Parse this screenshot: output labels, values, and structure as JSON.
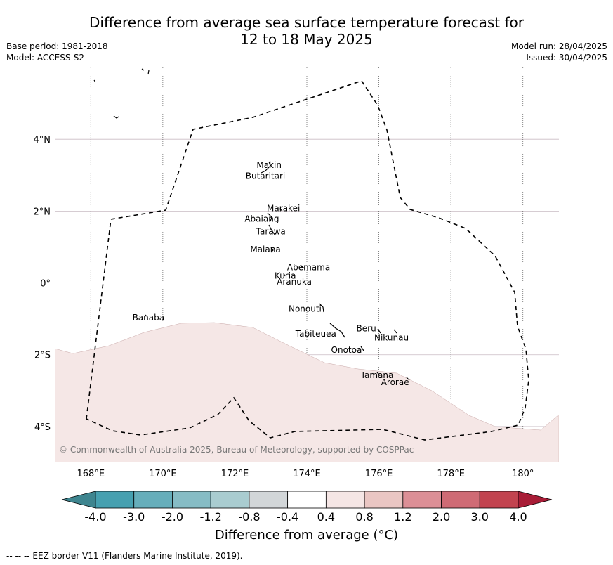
{
  "title_line1": "Difference from average sea surface temperature forecast for",
  "title_line2": "12 to 18 May 2025",
  "meta_left": [
    "Base period: 1981-2018",
    "Model: ACCESS-S2"
  ],
  "meta_right": [
    "Model run: 28/04/2025",
    "Issued: 30/04/2025"
  ],
  "copyright": "© Commonwealth of Australia 2025, Bureau of Meteorology, supported by COSPPac",
  "footer": "--  --  -- EEZ border V11 (Flanders Marine Institute, 2019).",
  "lat_ticks": [
    {
      "value": 4,
      "label": "4°N"
    },
    {
      "value": 2,
      "label": "2°N"
    },
    {
      "value": 0,
      "label": "0°"
    },
    {
      "value": -2,
      "label": "2°S"
    },
    {
      "value": -4,
      "label": "4°S"
    }
  ],
  "lon_ticks": [
    {
      "value": 168,
      "label": "168°E"
    },
    {
      "value": 170,
      "label": "170°E"
    },
    {
      "value": 172,
      "label": "172°E"
    },
    {
      "value": 174,
      "label": "174°E"
    },
    {
      "value": 176,
      "label": "176°E"
    },
    {
      "value": 178,
      "label": "178°E"
    },
    {
      "value": 180,
      "label": "180°"
    }
  ],
  "map_extent": {
    "lon_min": 167,
    "lon_max": 181,
    "lat_min": -5,
    "lat_max": 6
  },
  "places": [
    {
      "name": "Makin",
      "lon": 172.95,
      "lat": 3.2
    },
    {
      "name": "Butaritari",
      "lon": 172.85,
      "lat": 2.9
    },
    {
      "name": "Marakei",
      "lon": 173.35,
      "lat": 2.0
    },
    {
      "name": "Abaiang",
      "lon": 172.75,
      "lat": 1.7
    },
    {
      "name": "Tarawa",
      "lon": 173.0,
      "lat": 1.35
    },
    {
      "name": "Maiana",
      "lon": 172.85,
      "lat": 0.85
    },
    {
      "name": "Abemama",
      "lon": 174.05,
      "lat": 0.35
    },
    {
      "name": "Kuria",
      "lon": 173.4,
      "lat": 0.12
    },
    {
      "name": "Aranuka",
      "lon": 173.65,
      "lat": -0.05
    },
    {
      "name": "Banaba",
      "lon": 169.6,
      "lat": -1.05
    },
    {
      "name": "Nonouti",
      "lon": 173.95,
      "lat": -0.8
    },
    {
      "name": "Tabiteuea",
      "lon": 174.25,
      "lat": -1.5
    },
    {
      "name": "Beru",
      "lon": 175.65,
      "lat": -1.35
    },
    {
      "name": "Nikunau",
      "lon": 176.35,
      "lat": -1.6
    },
    {
      "name": "Onotoa",
      "lon": 175.1,
      "lat": -1.95
    },
    {
      "name": "Tamana",
      "lon": 175.95,
      "lat": -2.65
    },
    {
      "name": "Arorae",
      "lon": 176.45,
      "lat": -2.85
    }
  ],
  "colorbar": {
    "title": "Difference from average (°C)",
    "ticks": [
      "-4.0",
      "-3.0",
      "-2.0",
      "-1.2",
      "-0.8",
      "-0.4",
      "0.4",
      "0.8",
      "1.2",
      "2.0",
      "3.0",
      "4.0"
    ],
    "colors": [
      "#46a0b0",
      "#66aebb",
      "#86bcc5",
      "#a9ccd0",
      "#d2d6d8",
      "#ffffff",
      "#f5e6e5",
      "#eac6c3",
      "#dc8f96",
      "#cf6b75",
      "#c2434f"
    ],
    "extend_low": "#3e858f",
    "extend_high": "#a81d37"
  },
  "anomaly_fill_color": "#f5e7e6"
}
